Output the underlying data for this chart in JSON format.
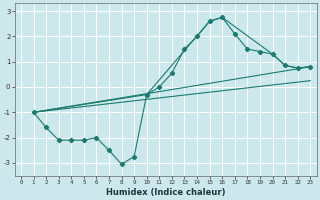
{
  "title": "",
  "xlabel": "Humidex (Indice chaleur)",
  "bg_color": "#cce8ec",
  "grid_color": "#ffffff",
  "line_color": "#1a7a6e",
  "xlim": [
    -0.5,
    23.5
  ],
  "ylim": [
    -3.5,
    3.3
  ],
  "yticks": [
    -3,
    -2,
    -1,
    0,
    1,
    2,
    3
  ],
  "xticks": [
    0,
    1,
    2,
    3,
    4,
    5,
    6,
    7,
    8,
    9,
    10,
    11,
    12,
    13,
    14,
    15,
    16,
    17,
    18,
    19,
    20,
    21,
    22,
    23
  ],
  "series": [
    {
      "x": [
        1,
        2,
        3,
        4,
        5,
        6,
        7,
        8,
        9,
        10,
        11,
        12,
        13,
        14,
        15,
        16,
        17,
        18,
        19,
        20,
        21,
        22,
        23
      ],
      "y": [
        -1.0,
        -1.6,
        -2.1,
        -2.1,
        -2.1,
        -2.0,
        -2.5,
        -3.05,
        -2.75,
        -0.3,
        0.0,
        0.55,
        1.5,
        2.0,
        2.6,
        2.75,
        2.1,
        1.5,
        1.4,
        1.3,
        0.85,
        0.75,
        0.8
      ],
      "marker": true
    },
    {
      "x": [
        1,
        10,
        15,
        16,
        20,
        21,
        22,
        23
      ],
      "y": [
        -1.0,
        -0.3,
        2.6,
        2.75,
        1.3,
        0.85,
        0.75,
        0.8
      ],
      "marker": false
    },
    {
      "x": [
        1,
        23
      ],
      "y": [
        -1.0,
        0.8
      ],
      "marker": false
    },
    {
      "x": [
        1,
        23
      ],
      "y": [
        -1.0,
        0.25
      ],
      "marker": false
    }
  ]
}
